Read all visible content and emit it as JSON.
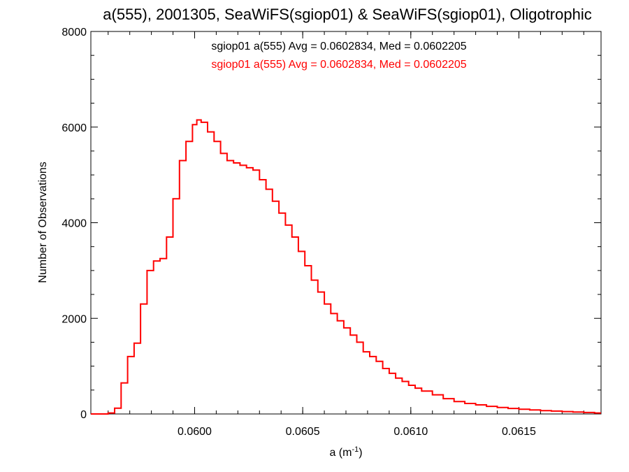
{
  "chart_data": {
    "type": "line",
    "title": "a(555), 2001305, SeaWiFS(sgiop01) & SeaWiFS(sgiop01), Oligotrophic",
    "xlabel_main": "a (m",
    "xlabel_sup": "-1",
    "xlabel_close": ")",
    "ylabel": "Number of Observations",
    "xlim": [
      0.05952,
      0.06188
    ],
    "ylim": [
      0,
      8000
    ],
    "x_ticks": [
      0.06,
      0.0605,
      0.061,
      0.0615
    ],
    "x_tick_labels": [
      "0.0600",
      "0.0605",
      "0.0610",
      "0.0615"
    ],
    "y_ticks": [
      0,
      2000,
      4000,
      6000,
      8000
    ],
    "y_tick_labels": [
      "0",
      "2000",
      "4000",
      "6000",
      "8000"
    ],
    "grid": false,
    "annotations": [
      {
        "text": "sgiop01 a(555) Avg = 0.0602834, Med = 0.0602205",
        "color": "#000000"
      },
      {
        "text": "sgiop01 a(555) Avg = 0.0602834, Med = 0.0602205",
        "color": "#ff0000"
      }
    ],
    "series": [
      {
        "color": "#ff0000",
        "x": [
          0.05952,
          0.0596,
          0.05963,
          0.05966,
          0.05969,
          0.05972,
          0.05975,
          0.05978,
          0.05981,
          0.05984,
          0.05987,
          0.0599,
          0.05993,
          0.05996,
          0.05999,
          0.06001,
          0.06003,
          0.06006,
          0.06009,
          0.06012,
          0.06015,
          0.06018,
          0.06021,
          0.06024,
          0.06027,
          0.0603,
          0.06033,
          0.06036,
          0.06039,
          0.06042,
          0.06045,
          0.06048,
          0.06051,
          0.06054,
          0.06057,
          0.0606,
          0.06063,
          0.06066,
          0.06069,
          0.06072,
          0.06075,
          0.06078,
          0.06081,
          0.06084,
          0.06087,
          0.0609,
          0.06093,
          0.06096,
          0.06099,
          0.06102,
          0.06105,
          0.0611,
          0.06115,
          0.0612,
          0.06125,
          0.0613,
          0.06135,
          0.0614,
          0.06145,
          0.0615,
          0.06155,
          0.0616,
          0.06165,
          0.0617,
          0.06175,
          0.0618,
          0.06185,
          0.06188
        ],
        "y": [
          0,
          20,
          120,
          650,
          1200,
          1480,
          2300,
          3000,
          3200,
          3250,
          3700,
          4500,
          5300,
          5700,
          6050,
          6150,
          6100,
          5900,
          5700,
          5450,
          5300,
          5250,
          5200,
          5150,
          5100,
          4900,
          4700,
          4450,
          4200,
          3950,
          3700,
          3400,
          3100,
          2800,
          2550,
          2300,
          2100,
          1950,
          1800,
          1650,
          1500,
          1300,
          1200,
          1100,
          950,
          850,
          750,
          680,
          600,
          540,
          480,
          400,
          320,
          260,
          220,
          190,
          160,
          135,
          115,
          100,
          85,
          70,
          60,
          50,
          40,
          30,
          20,
          20
        ]
      }
    ]
  }
}
